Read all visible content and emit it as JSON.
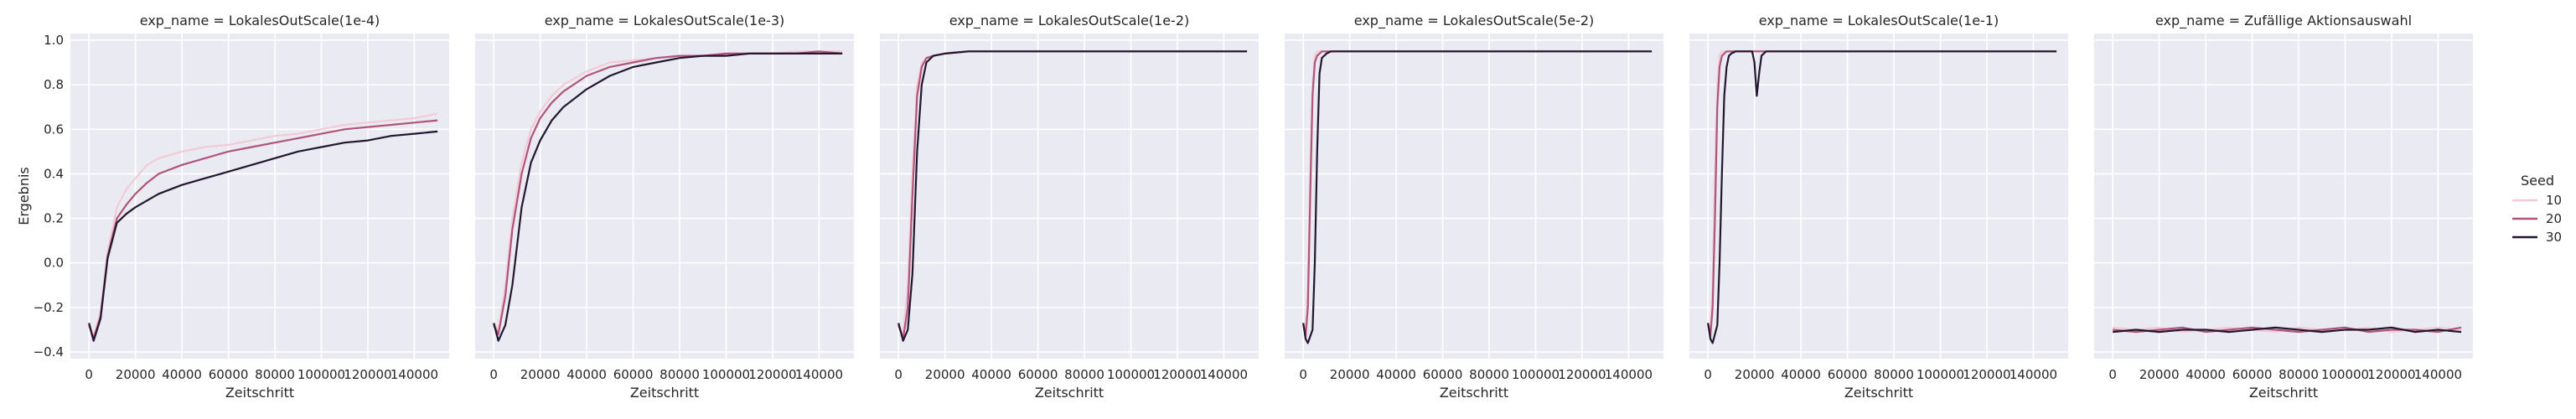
{
  "chart_data": {
    "type": "line",
    "facet_prefix": "exp_name = ",
    "xlabel": "Zeitschritt",
    "ylabel": "Ergebnis",
    "xlim": [
      -8000,
      155000
    ],
    "ylim": [
      -0.43,
      1.03
    ],
    "xticks": [
      0,
      20000,
      40000,
      60000,
      80000,
      100000,
      120000,
      140000
    ],
    "yticks": [
      -0.4,
      -0.2,
      0.0,
      0.2,
      0.4,
      0.6,
      0.8,
      1.0
    ],
    "ytick_labels": [
      "−0.4",
      "−0.2",
      "0.0",
      "0.2",
      "0.4",
      "0.6",
      "0.8",
      "1.0"
    ],
    "grid": true,
    "background": "#eaeaf2",
    "legend": {
      "title": "Seed",
      "placement": "right",
      "entries": [
        {
          "label": "10",
          "color": "#f3cbd3"
        },
        {
          "label": "20",
          "color": "#b0547a"
        },
        {
          "label": "30",
          "color": "#231631"
        }
      ]
    },
    "panels": [
      {
        "title": "LokalesOutScale(1e-4)",
        "series": [
          {
            "name": "10",
            "color": "#f3cbd3",
            "x": [
              0,
              2000,
              5000,
              8000,
              12000,
              16000,
              20000,
              25000,
              30000,
              40000,
              50000,
              60000,
              70000,
              80000,
              90000,
              100000,
              110000,
              120000,
              130000,
              140000,
              150000
            ],
            "y": [
              -0.27,
              -0.33,
              -0.22,
              0.05,
              0.25,
              0.33,
              0.38,
              0.44,
              0.47,
              0.5,
              0.52,
              0.53,
              0.55,
              0.57,
              0.58,
              0.6,
              0.62,
              0.63,
              0.64,
              0.65,
              0.67
            ]
          },
          {
            "name": "20",
            "color": "#b0547a",
            "x": [
              0,
              2000,
              5000,
              8000,
              12000,
              16000,
              20000,
              25000,
              30000,
              40000,
              50000,
              60000,
              70000,
              80000,
              90000,
              100000,
              110000,
              120000,
              130000,
              140000,
              150000
            ],
            "y": [
              -0.28,
              -0.34,
              -0.24,
              0.03,
              0.2,
              0.26,
              0.31,
              0.36,
              0.4,
              0.44,
              0.47,
              0.5,
              0.52,
              0.54,
              0.56,
              0.58,
              0.6,
              0.61,
              0.62,
              0.63,
              0.64
            ]
          },
          {
            "name": "30",
            "color": "#231631",
            "x": [
              0,
              2000,
              5000,
              8000,
              12000,
              16000,
              20000,
              25000,
              30000,
              40000,
              50000,
              60000,
              70000,
              80000,
              90000,
              100000,
              110000,
              120000,
              130000,
              140000,
              150000
            ],
            "y": [
              -0.27,
              -0.35,
              -0.25,
              0.02,
              0.18,
              0.22,
              0.25,
              0.28,
              0.31,
              0.35,
              0.38,
              0.41,
              0.44,
              0.47,
              0.5,
              0.52,
              0.54,
              0.55,
              0.57,
              0.58,
              0.59
            ]
          }
        ]
      },
      {
        "title": "LokalesOutScale(1e-3)",
        "series": [
          {
            "name": "10",
            "color": "#f3cbd3",
            "x": [
              0,
              2000,
              5000,
              8000,
              12000,
              16000,
              20000,
              25000,
              30000,
              40000,
              50000,
              60000,
              70000,
              80000,
              90000,
              100000,
              110000,
              120000,
              130000,
              140000,
              150000
            ],
            "y": [
              -0.27,
              -0.3,
              -0.1,
              0.2,
              0.45,
              0.6,
              0.68,
              0.75,
              0.8,
              0.86,
              0.9,
              0.91,
              0.92,
              0.93,
              0.93,
              0.94,
              0.94,
              0.94,
              0.95,
              0.95,
              0.95
            ]
          },
          {
            "name": "20",
            "color": "#b0547a",
            "x": [
              0,
              2000,
              5000,
              8000,
              12000,
              16000,
              20000,
              25000,
              30000,
              40000,
              50000,
              60000,
              70000,
              80000,
              90000,
              100000,
              110000,
              120000,
              130000,
              140000,
              150000
            ],
            "y": [
              -0.28,
              -0.32,
              -0.15,
              0.15,
              0.4,
              0.56,
              0.65,
              0.72,
              0.77,
              0.84,
              0.88,
              0.9,
              0.92,
              0.93,
              0.93,
              0.94,
              0.94,
              0.94,
              0.94,
              0.95,
              0.94
            ]
          },
          {
            "name": "30",
            "color": "#231631",
            "x": [
              0,
              2000,
              5000,
              8000,
              12000,
              16000,
              20000,
              25000,
              30000,
              40000,
              50000,
              60000,
              70000,
              80000,
              90000,
              100000,
              110000,
              120000,
              130000,
              140000,
              150000
            ],
            "y": [
              -0.27,
              -0.35,
              -0.28,
              -0.1,
              0.25,
              0.45,
              0.55,
              0.64,
              0.7,
              0.78,
              0.84,
              0.88,
              0.9,
              0.92,
              0.93,
              0.93,
              0.94,
              0.94,
              0.94,
              0.94,
              0.94
            ]
          }
        ]
      },
      {
        "title": "LokalesOutScale(1e-2)",
        "series": [
          {
            "name": "10",
            "color": "#f3cbd3",
            "x": [
              0,
              2000,
              4000,
              6000,
              8000,
              10000,
              12000,
              15000,
              20000,
              30000,
              40000,
              60000,
              80000,
              100000,
              120000,
              150000
            ],
            "y": [
              -0.27,
              -0.32,
              -0.1,
              0.4,
              0.8,
              0.9,
              0.92,
              0.93,
              0.94,
              0.95,
              0.95,
              0.95,
              0.95,
              0.95,
              0.95,
              0.95
            ]
          },
          {
            "name": "20",
            "color": "#b0547a",
            "x": [
              0,
              2000,
              4000,
              6000,
              8000,
              10000,
              12000,
              15000,
              20000,
              30000,
              40000,
              60000,
              80000,
              100000,
              120000,
              150000
            ],
            "y": [
              -0.28,
              -0.34,
              -0.2,
              0.3,
              0.75,
              0.88,
              0.92,
              0.93,
              0.94,
              0.95,
              0.95,
              0.95,
              0.95,
              0.95,
              0.95,
              0.95
            ]
          },
          {
            "name": "30",
            "color": "#231631",
            "x": [
              0,
              2000,
              4000,
              6000,
              8000,
              10000,
              12000,
              15000,
              20000,
              30000,
              40000,
              60000,
              80000,
              100000,
              120000,
              150000
            ],
            "y": [
              -0.27,
              -0.35,
              -0.3,
              -0.05,
              0.5,
              0.8,
              0.9,
              0.93,
              0.94,
              0.95,
              0.95,
              0.95,
              0.95,
              0.95,
              0.95,
              0.95
            ]
          }
        ]
      },
      {
        "title": "LokalesOutScale(5e-2)",
        "series": [
          {
            "name": "10",
            "color": "#f3cbd3",
            "x": [
              0,
              1000,
              2000,
              3000,
              4000,
              5000,
              6000,
              8000,
              10000,
              15000,
              20000,
              40000,
              60000,
              80000,
              100000,
              120000,
              150000
            ],
            "y": [
              -0.27,
              -0.3,
              -0.1,
              0.4,
              0.8,
              0.93,
              0.95,
              0.95,
              0.95,
              0.95,
              0.95,
              0.95,
              0.95,
              0.95,
              0.95,
              0.95,
              0.95
            ]
          },
          {
            "name": "20",
            "color": "#b0547a",
            "x": [
              0,
              1000,
              2000,
              3000,
              4000,
              5000,
              6000,
              8000,
              10000,
              15000,
              20000,
              40000,
              60000,
              80000,
              100000,
              120000,
              150000
            ],
            "y": [
              -0.27,
              -0.33,
              -0.2,
              0.3,
              0.75,
              0.9,
              0.93,
              0.95,
              0.95,
              0.95,
              0.95,
              0.95,
              0.95,
              0.95,
              0.95,
              0.95,
              0.95
            ]
          },
          {
            "name": "30",
            "color": "#231631",
            "x": [
              0,
              1000,
              2000,
              4000,
              5000,
              6000,
              7000,
              8000,
              10000,
              12000,
              15000,
              20000,
              40000,
              60000,
              80000,
              100000,
              120000,
              150000
            ],
            "y": [
              -0.27,
              -0.34,
              -0.36,
              -0.3,
              0.0,
              0.5,
              0.85,
              0.92,
              0.94,
              0.95,
              0.95,
              0.95,
              0.95,
              0.95,
              0.95,
              0.95,
              0.95,
              0.95
            ]
          }
        ]
      },
      {
        "title": "LokalesOutScale(1e-1)",
        "series": [
          {
            "name": "10",
            "color": "#f3cbd3",
            "x": [
              0,
              1000,
              2000,
              3000,
              4000,
              5000,
              6000,
              8000,
              10000,
              15000,
              20000,
              40000,
              60000,
              80000,
              100000,
              120000,
              150000
            ],
            "y": [
              -0.27,
              -0.3,
              -0.1,
              0.4,
              0.8,
              0.93,
              0.95,
              0.95,
              0.95,
              0.95,
              0.95,
              0.95,
              0.95,
              0.95,
              0.95,
              0.95,
              0.95
            ]
          },
          {
            "name": "20",
            "color": "#b0547a",
            "x": [
              0,
              1000,
              2000,
              3000,
              4000,
              5000,
              6000,
              7000,
              8000,
              10000,
              12000,
              15000,
              20000,
              40000,
              60000,
              80000,
              100000,
              120000,
              150000
            ],
            "y": [
              -0.27,
              -0.33,
              -0.2,
              0.2,
              0.7,
              0.88,
              0.93,
              0.94,
              0.95,
              0.95,
              0.95,
              0.95,
              0.95,
              0.95,
              0.95,
              0.95,
              0.95,
              0.95,
              0.95
            ]
          },
          {
            "name": "30",
            "color": "#231631",
            "x": [
              0,
              1000,
              2000,
              4000,
              5000,
              6000,
              7000,
              8000,
              9000,
              10000,
              12000,
              15000,
              18000,
              19000,
              20000,
              21000,
              22000,
              23000,
              25000,
              30000,
              40000,
              60000,
              80000,
              100000,
              120000,
              150000
            ],
            "y": [
              -0.27,
              -0.34,
              -0.36,
              -0.28,
              0.0,
              0.4,
              0.75,
              0.88,
              0.93,
              0.94,
              0.95,
              0.95,
              0.95,
              0.95,
              0.9,
              0.75,
              0.85,
              0.93,
              0.95,
              0.95,
              0.95,
              0.95,
              0.95,
              0.95,
              0.95,
              0.95
            ]
          }
        ]
      },
      {
        "title": "Zufällige Aktionsauswahl",
        "series": [
          {
            "name": "10",
            "color": "#f3cbd3",
            "x": [
              0,
              10000,
              20000,
              30000,
              40000,
              50000,
              60000,
              70000,
              80000,
              90000,
              100000,
              110000,
              120000,
              130000,
              140000,
              150000
            ],
            "y": [
              -0.29,
              -0.3,
              -0.29,
              -0.31,
              -0.3,
              -0.29,
              -0.3,
              -0.31,
              -0.29,
              -0.3,
              -0.3,
              -0.29,
              -0.31,
              -0.3,
              -0.29,
              -0.3
            ]
          },
          {
            "name": "20",
            "color": "#b0547a",
            "x": [
              0,
              10000,
              20000,
              30000,
              40000,
              50000,
              60000,
              70000,
              80000,
              90000,
              100000,
              110000,
              120000,
              130000,
              140000,
              150000
            ],
            "y": [
              -0.3,
              -0.31,
              -0.3,
              -0.29,
              -0.31,
              -0.3,
              -0.29,
              -0.3,
              -0.31,
              -0.3,
              -0.29,
              -0.31,
              -0.3,
              -0.3,
              -0.31,
              -0.29
            ]
          },
          {
            "name": "30",
            "color": "#231631",
            "x": [
              0,
              10000,
              20000,
              30000,
              40000,
              50000,
              60000,
              70000,
              80000,
              90000,
              100000,
              110000,
              120000,
              130000,
              140000,
              150000
            ],
            "y": [
              -0.31,
              -0.3,
              -0.31,
              -0.3,
              -0.3,
              -0.31,
              -0.3,
              -0.29,
              -0.3,
              -0.31,
              -0.3,
              -0.3,
              -0.29,
              -0.31,
              -0.3,
              -0.31
            ]
          }
        ]
      }
    ]
  }
}
